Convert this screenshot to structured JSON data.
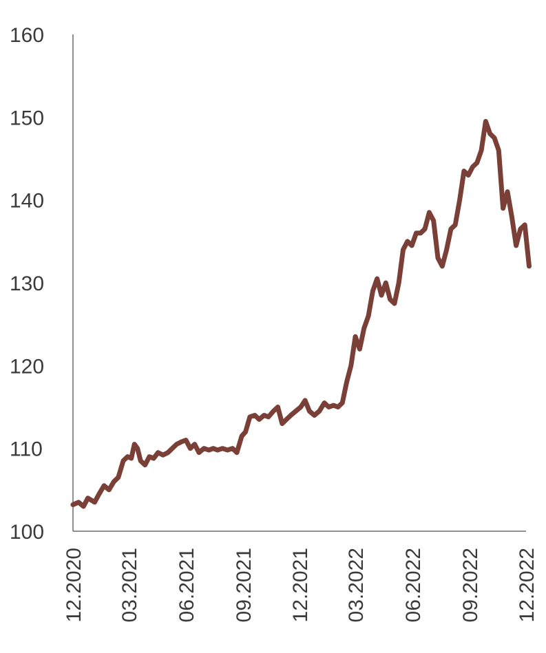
{
  "chart_data": {
    "type": "line",
    "title": "",
    "xlabel": "",
    "ylabel": "",
    "ylim": [
      100,
      160
    ],
    "yticks": [
      "100",
      "110",
      "120",
      "130",
      "140",
      "150",
      "160"
    ],
    "xticks": [
      "12.2020",
      "03.2021",
      "06.2021",
      "09.2021",
      "12.2021",
      "03.2022",
      "06.2022",
      "09.2022",
      "12.2022"
    ],
    "grid": false,
    "legend": "none",
    "color": "#7a3f36",
    "series": [
      {
        "x": [
          "2020-12-01",
          "2020-12-10",
          "2020-12-18",
          "2020-12-25",
          "2021-01-05",
          "2021-01-12",
          "2021-01-20",
          "2021-01-28",
          "2021-02-05",
          "2021-02-12",
          "2021-02-20",
          "2021-02-27",
          "2021-03-05",
          "2021-03-10",
          "2021-03-15",
          "2021-03-20",
          "2021-03-27",
          "2021-04-03",
          "2021-04-10",
          "2021-04-17",
          "2021-04-25",
          "2021-05-03",
          "2021-05-10",
          "2021-05-17",
          "2021-05-25",
          "2021-06-01",
          "2021-06-08",
          "2021-06-15",
          "2021-06-22",
          "2021-06-30",
          "2021-07-08",
          "2021-07-15",
          "2021-07-22",
          "2021-07-30",
          "2021-08-07",
          "2021-08-15",
          "2021-08-22",
          "2021-08-30",
          "2021-09-05",
          "2021-09-12",
          "2021-09-20",
          "2021-09-27",
          "2021-10-05",
          "2021-10-12",
          "2021-10-20",
          "2021-10-27",
          "2021-11-03",
          "2021-11-10",
          "2021-11-17",
          "2021-11-25",
          "2021-12-03",
          "2021-12-10",
          "2021-12-17",
          "2021-12-25",
          "2022-01-02",
          "2022-01-10",
          "2022-01-17",
          "2022-01-25",
          "2022-02-01",
          "2022-02-08",
          "2022-02-15",
          "2022-02-22",
          "2022-03-01",
          "2022-03-08",
          "2022-03-15",
          "2022-03-22",
          "2022-03-29",
          "2022-04-05",
          "2022-04-12",
          "2022-04-19",
          "2022-04-26",
          "2022-05-03",
          "2022-05-10",
          "2022-05-17",
          "2022-05-24",
          "2022-05-31",
          "2022-06-07",
          "2022-06-14",
          "2022-06-21",
          "2022-06-28",
          "2022-07-05",
          "2022-07-12",
          "2022-07-19",
          "2022-07-26",
          "2022-08-02",
          "2022-08-09",
          "2022-08-16",
          "2022-08-23",
          "2022-08-30",
          "2022-09-06",
          "2022-09-13",
          "2022-09-20",
          "2022-09-27",
          "2022-10-04",
          "2022-10-11",
          "2022-10-18",
          "2022-10-25",
          "2022-11-01",
          "2022-11-08",
          "2022-11-15",
          "2022-11-22",
          "2022-11-29",
          "2022-12-06"
        ],
        "values": [
          103.2,
          103.5,
          103.0,
          104.0,
          103.5,
          104.5,
          105.5,
          105.0,
          106.0,
          106.5,
          108.5,
          109.0,
          108.8,
          110.5,
          110.0,
          108.5,
          108.0,
          109.0,
          108.8,
          109.5,
          109.2,
          109.5,
          110.0,
          110.5,
          110.8,
          111.0,
          110.0,
          110.5,
          109.5,
          110.0,
          109.8,
          110.0,
          109.8,
          110.0,
          109.8,
          110.0,
          109.5,
          111.5,
          112.0,
          113.8,
          114.0,
          113.5,
          114.0,
          113.8,
          114.5,
          115.0,
          113.0,
          113.5,
          114.0,
          114.5,
          115.0,
          115.8,
          114.5,
          114.0,
          114.5,
          115.5,
          115.0,
          115.2,
          115.0,
          115.5,
          118.0,
          120.0,
          123.5,
          122.0,
          124.5,
          126.0,
          129.0,
          130.5,
          128.5,
          130.0,
          128.0,
          127.5,
          130.0,
          134.0,
          135.0,
          134.5,
          136.0,
          136.0,
          136.5,
          138.5,
          137.5,
          133.0,
          132.0,
          134.0,
          136.5,
          137.0,
          140.0,
          143.5,
          143.0,
          144.0,
          144.5,
          146.0,
          149.5,
          148.0,
          147.5,
          146.0,
          139.0,
          141.0,
          138.0,
          134.5,
          136.5,
          137.0,
          132.0
        ]
      }
    ]
  }
}
